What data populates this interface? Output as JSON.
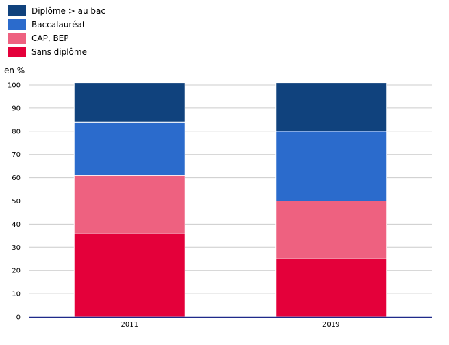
{
  "chart_data": {
    "type": "bar",
    "stacked": true,
    "unit_label": "en %",
    "categories": [
      "2011",
      "2019"
    ],
    "series": [
      {
        "name": "Sans diplôme",
        "color": "#e4003a",
        "values": [
          36,
          25
        ]
      },
      {
        "name": "CAP, BEP",
        "color": "#ee6180",
        "values": [
          25,
          25
        ]
      },
      {
        "name": "Baccalauréat",
        "color": "#2b6bcc",
        "values": [
          23,
          30
        ]
      },
      {
        "name": "Diplôme > au bac",
        "color": "#10427d",
        "values": [
          17,
          21
        ]
      }
    ],
    "legend_order": [
      "Diplôme > au bac",
      "Baccalauréat",
      "CAP, BEP",
      "Sans diplôme"
    ],
    "ylim": [
      0,
      100
    ],
    "yticks": [
      0,
      10,
      20,
      30,
      40,
      50,
      60,
      70,
      80,
      90,
      100
    ],
    "grid": true,
    "legend_position": "top-left"
  }
}
